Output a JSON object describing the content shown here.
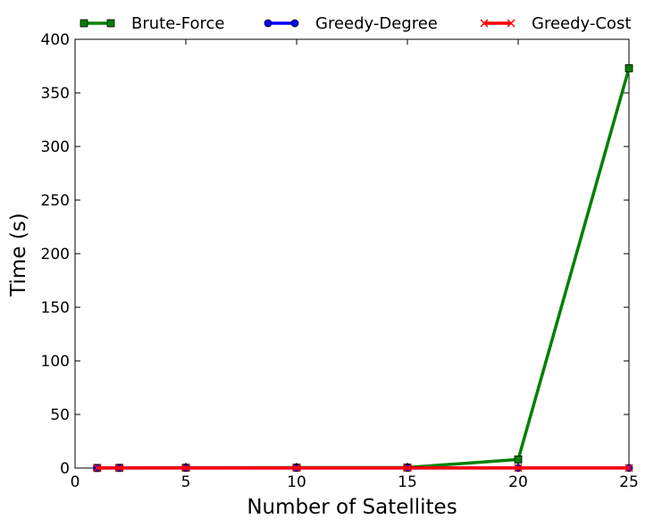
{
  "chart_data": {
    "type": "line",
    "xlabel": "Number of Satellites",
    "ylabel": "Time (s)",
    "xlim": [
      0,
      25
    ],
    "ylim": [
      0,
      400
    ],
    "xticks": [
      0,
      5,
      10,
      15,
      20,
      25
    ],
    "yticks": [
      0,
      50,
      100,
      150,
      200,
      250,
      300,
      350,
      400
    ],
    "grid": false,
    "legend_position": "top",
    "series": [
      {
        "name": "Brute-Force",
        "color": "#008000",
        "marker": "square",
        "x": [
          1,
          2,
          5,
          10,
          15,
          20,
          25
        ],
        "y": [
          0.1,
          0.2,
          0.3,
          0.4,
          0.5,
          8,
          373
        ]
      },
      {
        "name": "Greedy-Degree",
        "color": "#0000ff",
        "marker": "circle",
        "x": [
          1,
          2,
          5,
          10,
          15,
          20,
          25
        ],
        "y": [
          0.1,
          0.1,
          0.1,
          0.1,
          0.1,
          0.1,
          0.1
        ]
      },
      {
        "name": "Greedy-Cost",
        "color": "#ff0000",
        "marker": "x",
        "x": [
          1,
          2,
          5,
          10,
          15,
          20,
          25
        ],
        "y": [
          0.1,
          0.1,
          0.1,
          0.1,
          0.1,
          0.1,
          0.1
        ]
      }
    ]
  }
}
